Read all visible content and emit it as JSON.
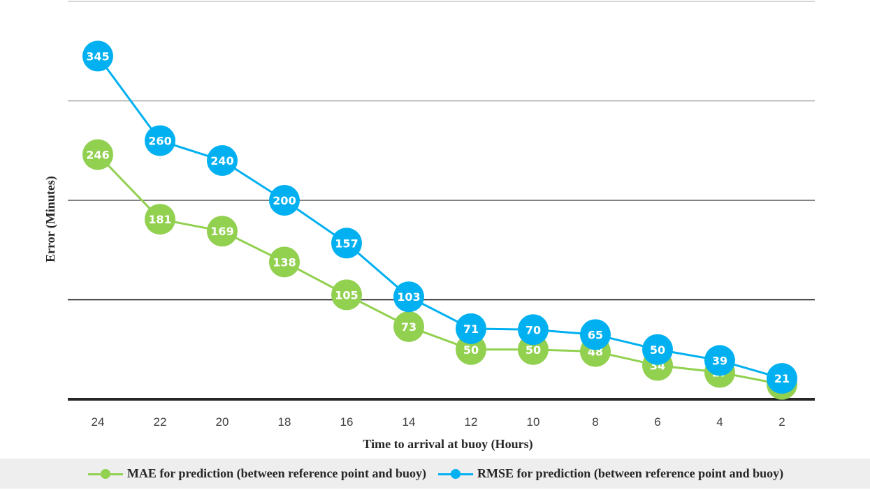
{
  "chart_data": {
    "type": "line",
    "categories": [
      "24",
      "22",
      "20",
      "18",
      "16",
      "14",
      "12",
      "10",
      "8",
      "6",
      "4",
      "2"
    ],
    "series": [
      {
        "name": "MAE for prediction (between reference point and buoy)",
        "color": "#92d050",
        "values": [
          246,
          181,
          169,
          138,
          105,
          73,
          50,
          50,
          48,
          34,
          27,
          15
        ]
      },
      {
        "name": "RMSE for prediction (between reference point and buoy)",
        "color": "#00b0f0",
        "values": [
          345,
          260,
          240,
          200,
          157,
          103,
          71,
          70,
          65,
          50,
          39,
          21
        ]
      }
    ],
    "xlabel": "Time to arrival at buoy (Hours)",
    "ylabel": "Error (Minutes)",
    "ylim": [
      0,
      400
    ],
    "y_gridlines": [
      100,
      200,
      300,
      400
    ],
    "y_tick_labels_shown": false,
    "legend_position": "bottom",
    "grid": true
  }
}
